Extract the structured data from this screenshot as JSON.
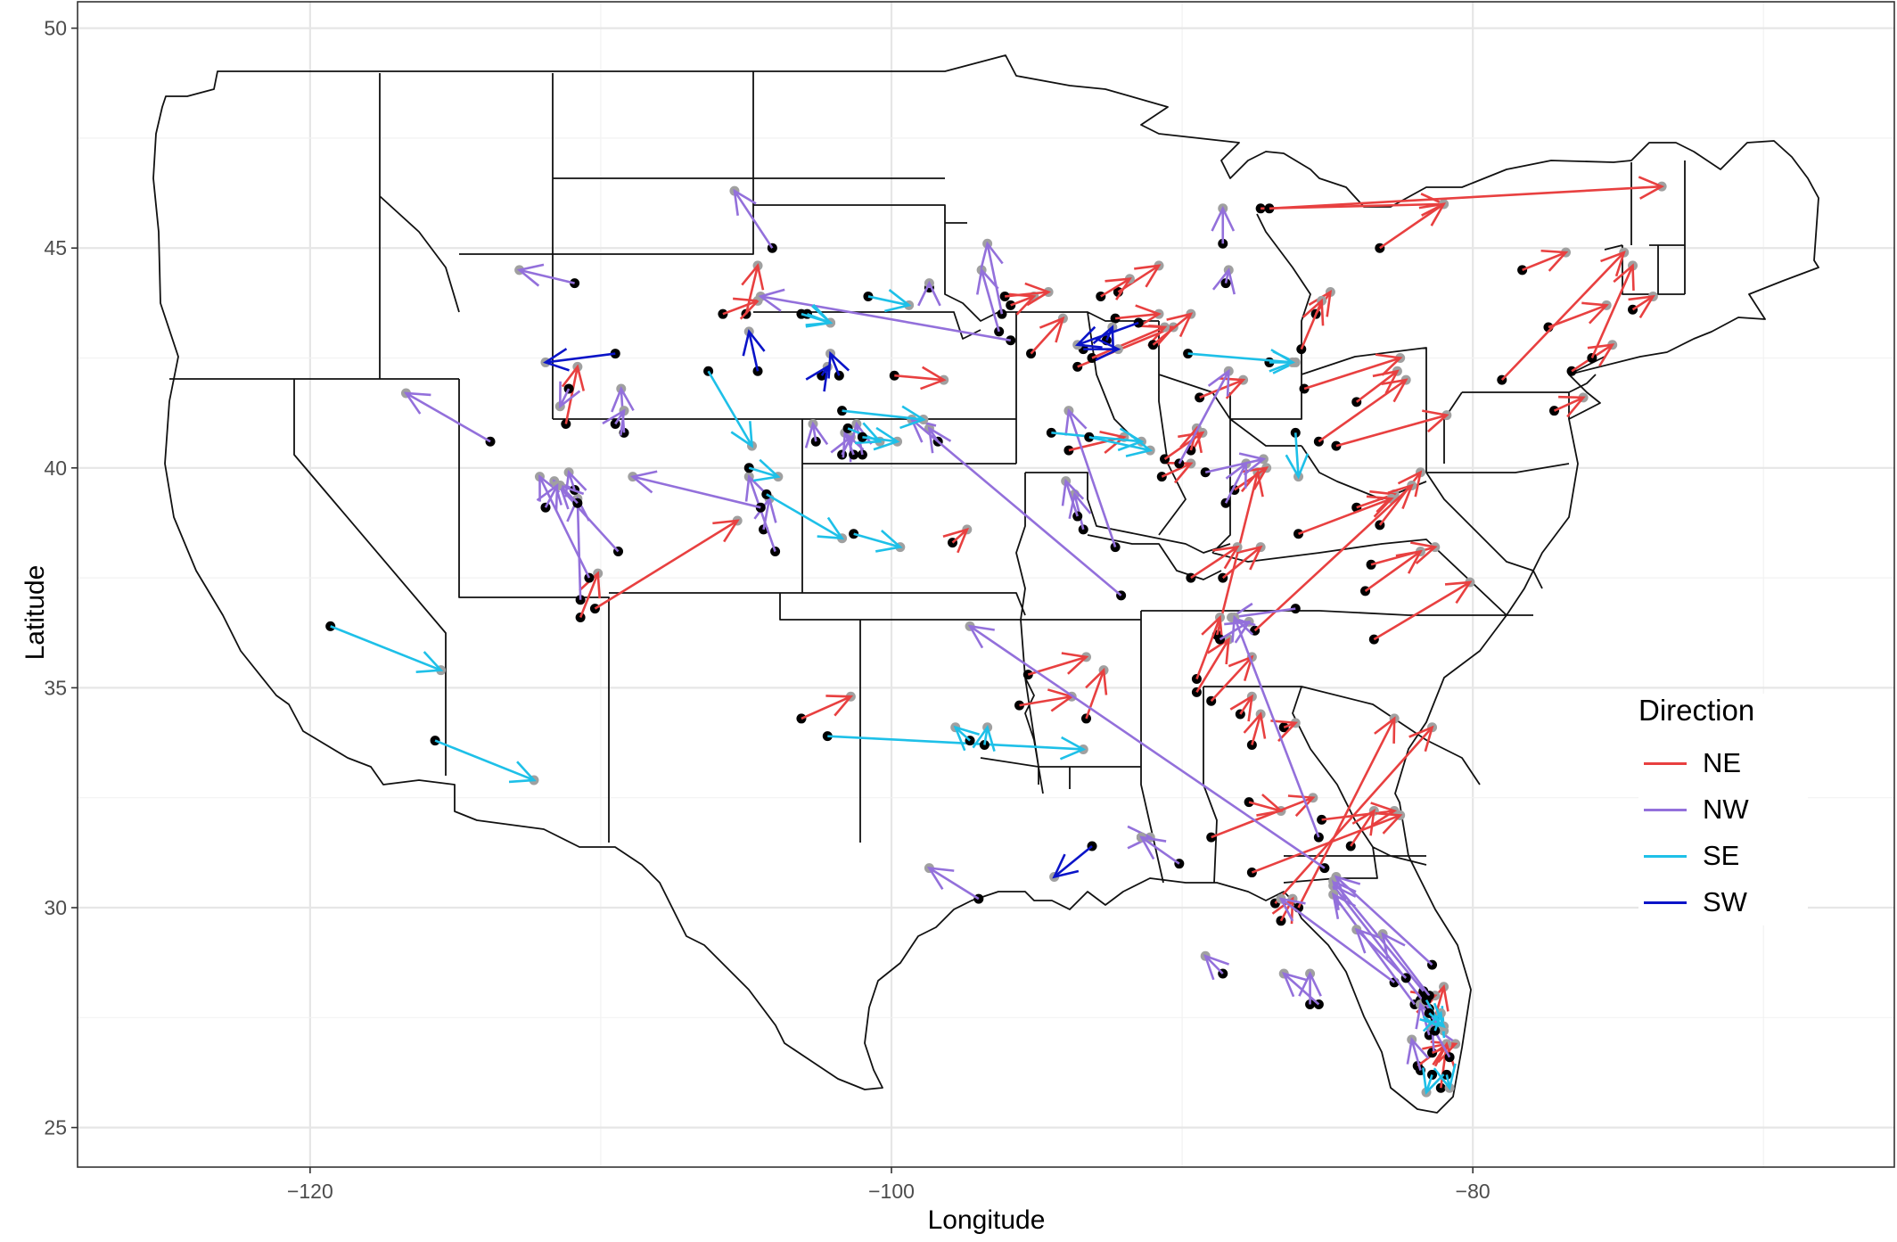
{
  "axes": {
    "xlabel": "Longitude",
    "ylabel": "Latitude",
    "xlim": [
      -128,
      -65.5
    ],
    "ylim": [
      24.1,
      50.6
    ],
    "xticks": [
      -120,
      -100,
      -80
    ],
    "xtick_labels": [
      "−120",
      "−100",
      "−80"
    ],
    "yticks": [
      25,
      30,
      35,
      40,
      45,
      50
    ],
    "ytick_labels": [
      "25",
      "30",
      "35",
      "40",
      "45",
      "50"
    ]
  },
  "legend": {
    "title": "Direction",
    "entries": [
      {
        "label": "NE",
        "color": "#e84040"
      },
      {
        "label": "NW",
        "color": "#9370db"
      },
      {
        "label": "SE",
        "color": "#1ec0e8"
      },
      {
        "label": "SW",
        "color": "#0a14c8"
      }
    ]
  },
  "colors": {
    "NE": "#e84040",
    "NW": "#9370db",
    "SE": "#1ec0e8",
    "SW": "#0a14c8",
    "origin": "#000000",
    "destination": "#a0a0a0",
    "grid": "#ebebeb",
    "border": "#333333"
  },
  "chart_data": {
    "type": "scatter",
    "description_of_marks": "origin points (black) connected by arrows to destination points (grey), colored by direction",
    "xlabel": "Longitude",
    "ylabel": "Latitude",
    "grid": true,
    "legend_position": "right",
    "series": [
      {
        "name": "NE",
        "arrows": [
          [
            -87.3,
            45.9,
            -81,
            46
          ],
          [
            -83.2,
            45,
            -81,
            46
          ],
          [
            -87,
            45.9,
            -73.5,
            46.4
          ],
          [
            -78.3,
            44.5,
            -76.8,
            44.9
          ],
          [
            -77.4,
            43.2,
            -75.4,
            43.7
          ],
          [
            -76.6,
            42.2,
            -75.2,
            42.8
          ],
          [
            -79,
            42,
            -74.8,
            44.9
          ],
          [
            -74.5,
            43.6,
            -73.8,
            43.9
          ],
          [
            -75.9,
            42.5,
            -74.5,
            44.6
          ],
          [
            -77.2,
            41.3,
            -76.2,
            41.6
          ],
          [
            -85.4,
            43.5,
            -84.9,
            44
          ],
          [
            -85.9,
            42.7,
            -85.2,
            43.8
          ],
          [
            -85.8,
            41.8,
            -82.5,
            42.5
          ],
          [
            -84,
            41.5,
            -82.6,
            42.2
          ],
          [
            -85.3,
            40.6,
            -82.3,
            42
          ],
          [
            -84.7,
            40.5,
            -80.9,
            41.2
          ],
          [
            -84,
            39.1,
            -82.7,
            39.4
          ],
          [
            -83.2,
            38.7,
            -81.8,
            39.9
          ],
          [
            -83.5,
            37.8,
            -81.3,
            38.2
          ],
          [
            -83.7,
            37.2,
            -81.8,
            38.1
          ],
          [
            -83.4,
            36.1,
            -80.1,
            37.4
          ],
          [
            -86,
            38.5,
            -82.8,
            39.3
          ],
          [
            -87.5,
            36.3,
            -82.1,
            39.6
          ],
          [
            -88.6,
            37.5,
            -87.3,
            38.2
          ],
          [
            -88.8,
            36.2,
            -87.4,
            39.9
          ],
          [
            -89.5,
            35.2,
            -88.7,
            36.6
          ],
          [
            -89.5,
            34.9,
            -88.4,
            36.1
          ],
          [
            -89,
            34.7,
            -87.6,
            35.7
          ],
          [
            -88,
            34.4,
            -87.6,
            34.8
          ],
          [
            -87.6,
            33.7,
            -87.3,
            34.4
          ],
          [
            -86.5,
            34.1,
            -86.1,
            34.2
          ],
          [
            -87.7,
            32.4,
            -86.6,
            32.2
          ],
          [
            -85.2,
            32,
            -82.7,
            32.2
          ],
          [
            -84.2,
            31.4,
            -83.4,
            32.2
          ],
          [
            -87.6,
            30.8,
            -82.5,
            32.1
          ],
          [
            -89,
            31.6,
            -85.5,
            32.5
          ],
          [
            -86,
            30,
            -82.7,
            34.3
          ],
          [
            -86.8,
            30.1,
            -81.4,
            34.1
          ],
          [
            -86.6,
            29.7,
            -86.2,
            30.2
          ],
          [
            -89.4,
            41.6,
            -87.9,
            42
          ],
          [
            -88.2,
            39.5,
            -87.1,
            40
          ],
          [
            -89.7,
            37.5,
            -88.1,
            38.2
          ],
          [
            -90.7,
            39.8,
            -89.7,
            40.1
          ],
          [
            -90.6,
            40.2,
            -89.3,
            40.8
          ],
          [
            -89.7,
            40.4,
            -89.5,
            40.9
          ],
          [
            -93.6,
            42.3,
            -90.3,
            43.2
          ],
          [
            -93.1,
            42.5,
            -90.6,
            43.2
          ],
          [
            -91,
            42.8,
            -89.7,
            43.5
          ],
          [
            -92.3,
            43.4,
            -90.8,
            43.5
          ],
          [
            -92.2,
            44,
            -90.8,
            44.6
          ],
          [
            -95.2,
            42.6,
            -94.1,
            43.4
          ],
          [
            -95.9,
            43.7,
            -95.1,
            43.9
          ],
          [
            -96.1,
            43.9,
            -94.6,
            44
          ],
          [
            -92.8,
            43.9,
            -91.8,
            44.3
          ],
          [
            -93.9,
            40.4,
            -92,
            40.7
          ],
          [
            -95.3,
            35.3,
            -93.3,
            35.7
          ],
          [
            -93.3,
            34.3,
            -92.7,
            35.4
          ],
          [
            -95.6,
            34.6,
            -93.8,
            34.8
          ],
          [
            -103.1,
            34.3,
            -101.4,
            34.8
          ],
          [
            -99.9,
            42.1,
            -98.2,
            42
          ],
          [
            -97.9,
            38.3,
            -97.4,
            38.6
          ],
          [
            -105,
            43.5,
            -104.6,
            44.6
          ],
          [
            -105.8,
            43.5,
            -104.6,
            43.8
          ],
          [
            -111.2,
            41,
            -110.8,
            42.3
          ],
          [
            -110.7,
            36.6,
            -110.1,
            37.6
          ],
          [
            -110.2,
            36.8,
            -105.3,
            38.8
          ],
          [
            -81.3,
            27.5,
            -81,
            28.2
          ],
          [
            -81.9,
            26.4,
            -80.9,
            26.9
          ],
          [
            -81.4,
            26.7,
            -80.6,
            26.9
          ],
          [
            -81.1,
            25.9,
            -80.9,
            26.9
          ],
          [
            -81.8,
            27.9,
            -81.3,
            28
          ]
        ]
      },
      {
        "name": "NW",
        "arrows": [
          [
            -104.1,
            45,
            -105.4,
            46.3
          ],
          [
            -110.9,
            44.2,
            -112.8,
            44.5
          ],
          [
            -111.1,
            41.8,
            -111.4,
            41.4
          ],
          [
            -113.8,
            40.6,
            -116.7,
            41.7
          ],
          [
            -109.2,
            40.8,
            -109.3,
            41.8
          ],
          [
            -109.5,
            41,
            -109.2,
            41.3
          ],
          [
            -110.7,
            37,
            -110.8,
            39.3
          ],
          [
            -109.4,
            38.1,
            -111.6,
            39.7
          ],
          [
            -110.4,
            37.5,
            -112.1,
            39.8
          ],
          [
            -110.9,
            39.5,
            -111.1,
            39.9
          ],
          [
            -110.8,
            39.2,
            -111.4,
            39.6
          ],
          [
            -111.9,
            39.1,
            -111.5,
            39.6
          ],
          [
            -104.4,
            38.6,
            -104.2,
            39.3
          ],
          [
            -104,
            38.1,
            -104.9,
            39.8
          ],
          [
            -104.5,
            39.1,
            -108.9,
            39.8
          ],
          [
            -98.4,
            40.6,
            -98.7,
            40.9
          ],
          [
            -102.6,
            40.6,
            -102.7,
            41
          ],
          [
            -101.7,
            40.3,
            -101.4,
            40.7
          ],
          [
            -101.3,
            40.3,
            -101.6,
            40.8
          ],
          [
            -101,
            40.3,
            -101.2,
            41
          ],
          [
            -96.3,
            43.1,
            -96.9,
            44.5
          ],
          [
            -96.2,
            43.5,
            -96.7,
            45.1
          ],
          [
            -98.7,
            44.1,
            -98.7,
            44.2
          ],
          [
            -95.9,
            42.9,
            -104.5,
            43.9
          ],
          [
            -92.3,
            38.2,
            -93.9,
            41.3
          ],
          [
            -93.4,
            38.6,
            -93.7,
            39.4
          ],
          [
            -93.6,
            38.9,
            -94,
            39.7
          ],
          [
            -92.1,
            37.1,
            -99.3,
            41.1
          ],
          [
            -90.1,
            40.1,
            -88.4,
            42.2
          ],
          [
            -88.5,
            39.2,
            -87.8,
            40.1
          ],
          [
            -89.2,
            39.9,
            -87.2,
            40.2
          ],
          [
            -88.6,
            45.1,
            -88.6,
            45.9
          ],
          [
            -88.5,
            44.2,
            -88.4,
            44.5
          ],
          [
            -88.7,
            36.1,
            -87.7,
            36.5
          ],
          [
            -85.1,
            30.9,
            -97.3,
            36.4
          ],
          [
            -91.4,
            31.6,
            -91.1,
            31.6
          ],
          [
            -90.1,
            31,
            -91.4,
            31.6
          ],
          [
            -97,
            30.2,
            -98.7,
            30.9
          ],
          [
            -88.6,
            28.5,
            -89.2,
            28.9
          ],
          [
            -85.6,
            27.8,
            -85.6,
            28.5
          ],
          [
            -85.3,
            27.8,
            -86.5,
            28.5
          ],
          [
            -82.7,
            28.3,
            -86.6,
            30.2
          ],
          [
            -81.5,
            27.7,
            -84.8,
            30.5
          ],
          [
            -81.7,
            28.1,
            -84.8,
            30.6
          ],
          [
            -82,
            27.8,
            -84.8,
            30.3
          ],
          [
            -81.5,
            28,
            -83.1,
            29.4
          ],
          [
            -82.3,
            28.4,
            -84,
            29.5
          ],
          [
            -81.5,
            27.1,
            -81.8,
            27.8
          ],
          [
            -80.8,
            26.6,
            -81.4,
            27.3
          ],
          [
            -81.8,
            26.3,
            -82.1,
            27
          ],
          [
            -81.4,
            28.7,
            -84.7,
            30.7
          ],
          [
            -86.1,
            36.8,
            -88.3,
            36.6
          ],
          [
            -85.3,
            31.6,
            -88.2,
            36.6
          ]
        ]
      },
      {
        "name": "SE",
        "arrows": [
          [
            -119.3,
            36.4,
            -115.5,
            35.4
          ],
          [
            -115.7,
            33.8,
            -112.3,
            32.9
          ],
          [
            -106.3,
            42.2,
            -104.8,
            40.5
          ],
          [
            -104.9,
            40,
            -103.9,
            39.8
          ],
          [
            -104.3,
            39.4,
            -101.7,
            38.4
          ],
          [
            -102.9,
            43.5,
            -102.1,
            43.3
          ],
          [
            -103.1,
            43.5,
            -102.1,
            43.3
          ],
          [
            -100.8,
            43.9,
            -99.4,
            43.7
          ],
          [
            -101.7,
            41.3,
            -98.9,
            41.1
          ],
          [
            -101.3,
            38.5,
            -99.7,
            38.2
          ],
          [
            -101.5,
            40.9,
            -100.4,
            40.6
          ],
          [
            -101,
            40.7,
            -99.8,
            40.6
          ],
          [
            -102.2,
            33.9,
            -93.4,
            33.6
          ],
          [
            -96.8,
            33.7,
            -96.7,
            34.1
          ],
          [
            -97.3,
            33.8,
            -97.8,
            34.1
          ],
          [
            -94.5,
            40.8,
            -91.4,
            40.6
          ],
          [
            -93.2,
            40.7,
            -91.1,
            40.4
          ],
          [
            -86.1,
            40.8,
            -86,
            39.8
          ],
          [
            -87,
            42.4,
            -86.1,
            42.4
          ],
          [
            -89.8,
            42.6,
            -86.2,
            42.4
          ],
          [
            -81.6,
            27.9,
            -81,
            27.2
          ],
          [
            -81.3,
            27.2,
            -81.1,
            27.6
          ],
          [
            -80.9,
            26.2,
            -80.8,
            25.9
          ],
          [
            -81.4,
            26.2,
            -81.6,
            25.8
          ],
          [
            -81.5,
            27.6,
            -81,
            27.3
          ]
        ]
      },
      {
        "name": "SW",
        "arrows": [
          [
            -109.5,
            42.6,
            -111.9,
            42.4
          ],
          [
            -104.6,
            42.2,
            -104.9,
            43.1
          ],
          [
            -102.4,
            42.1,
            -102.2,
            42.3
          ],
          [
            -101.8,
            42.1,
            -102.1,
            42.6
          ],
          [
            -92.6,
            42.9,
            -92.4,
            43.2
          ],
          [
            -93.4,
            42.7,
            -92.2,
            42.7
          ],
          [
            -91.5,
            43.3,
            -93.6,
            42.8
          ],
          [
            -93.1,
            31.4,
            -94.4,
            30.7
          ]
        ]
      }
    ]
  }
}
